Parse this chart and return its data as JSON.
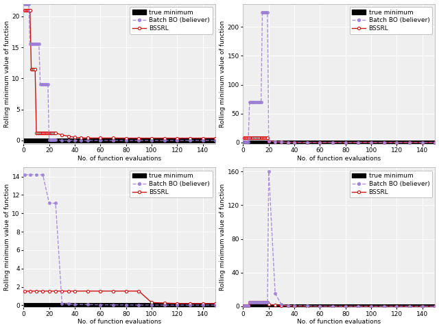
{
  "subplot_configs": [
    {
      "ylim": [
        -0.5,
        22
      ],
      "yticks": [
        0,
        5,
        10,
        15,
        20
      ],
      "bo_x": [
        1,
        2,
        3,
        4,
        5,
        6,
        7,
        8,
        9,
        10,
        11,
        12,
        13,
        14,
        15,
        16,
        17,
        18,
        19,
        20,
        21,
        22,
        23,
        24,
        25,
        30,
        35,
        40,
        45,
        50,
        60,
        70,
        80,
        90,
        100,
        110,
        120,
        130,
        140,
        150
      ],
      "bo_y": [
        22,
        22,
        22,
        22,
        15.5,
        15.5,
        15.5,
        15.5,
        15.5,
        15.5,
        15.5,
        15.5,
        9,
        9,
        9,
        9,
        9,
        9,
        9,
        0.08,
        0.08,
        0.08,
        0.08,
        0.08,
        0.08,
        0.05,
        0.03,
        0.02,
        0.01,
        0.01,
        0.01,
        0.01,
        0.01,
        0.01,
        0.01,
        0.01,
        0.01,
        0.01,
        0.01,
        0.01
      ],
      "rl_x": [
        1,
        2,
        3,
        4,
        5,
        6,
        7,
        8,
        9,
        10,
        11,
        12,
        13,
        14,
        15,
        16,
        17,
        18,
        19,
        20,
        21,
        22,
        23,
        24,
        25,
        30,
        35,
        40,
        45,
        50,
        60,
        70,
        80,
        90,
        100,
        110,
        120,
        130,
        140,
        150
      ],
      "rl_y": [
        21,
        21,
        21,
        21,
        21,
        11.5,
        11.5,
        11.5,
        11.5,
        1.2,
        1.2,
        1.2,
        1.2,
        1.2,
        1.2,
        1.2,
        1.2,
        1.2,
        1.2,
        1.2,
        1.2,
        1.2,
        1.2,
        1.2,
        1.2,
        0.9,
        0.7,
        0.5,
        0.45,
        0.4,
        0.4,
        0.4,
        0.38,
        0.38,
        0.38,
        0.38,
        0.38,
        0.38,
        0.38,
        0.38
      ]
    },
    {
      "ylim": [
        -2,
        240
      ],
      "yticks": [
        0,
        50,
        100,
        150,
        200
      ],
      "bo_x": [
        1,
        2,
        3,
        4,
        5,
        6,
        7,
        8,
        9,
        10,
        11,
        12,
        13,
        14,
        15,
        16,
        17,
        18,
        19,
        20,
        25,
        30,
        35,
        40,
        50,
        60,
        70,
        80,
        90,
        100,
        110,
        120,
        130,
        140,
        150
      ],
      "bo_y": [
        1,
        1,
        1,
        1,
        70,
        70,
        70,
        70,
        70,
        70,
        70,
        70,
        70,
        70,
        225,
        225,
        225,
        225,
        225,
        2,
        1.5,
        0.5,
        0.3,
        0.2,
        0.15,
        0.1,
        0.08,
        0.07,
        0.06,
        0.05,
        0.05,
        0.05,
        0.05,
        0.05,
        0.05
      ],
      "rl_x": [
        1,
        2,
        3,
        4,
        5,
        6,
        7,
        8,
        9,
        10,
        11,
        12,
        13,
        14,
        15,
        16,
        17,
        18,
        19,
        20,
        25,
        30,
        35,
        40,
        50,
        60,
        70,
        80,
        90,
        100,
        110,
        120,
        130,
        140,
        150
      ],
      "rl_y": [
        8,
        8,
        8,
        8,
        8,
        8,
        8,
        8,
        8,
        8,
        8,
        8,
        8,
        8,
        8,
        8,
        8,
        8,
        8,
        2,
        1.5,
        0.5,
        0.3,
        0.2,
        0.15,
        0.1,
        0.08,
        0.07,
        0.06,
        0.05,
        0.05,
        0.05,
        0.05,
        0.05,
        0.05
      ]
    },
    {
      "ylim": [
        -0.2,
        15
      ],
      "yticks": [
        0,
        2,
        4,
        6,
        8,
        10,
        12,
        14
      ],
      "bo_x": [
        1,
        5,
        10,
        15,
        20,
        25,
        30,
        35,
        40,
        50,
        60,
        70,
        80,
        90,
        100,
        110,
        120,
        130,
        140,
        150
      ],
      "bo_y": [
        14.2,
        14.2,
        14.2,
        14.2,
        11.1,
        11.1,
        0.2,
        0.15,
        0.1,
        0.08,
        0.06,
        0.05,
        0.04,
        0.03,
        0.03,
        0.02,
        0.02,
        0.02,
        0.02,
        0.02
      ],
      "rl_x": [
        1,
        5,
        10,
        15,
        20,
        25,
        30,
        35,
        40,
        50,
        60,
        70,
        80,
        90,
        100,
        110,
        120,
        130,
        140,
        150
      ],
      "rl_y": [
        1.55,
        1.55,
        1.55,
        1.55,
        1.55,
        1.55,
        1.55,
        1.55,
        1.55,
        1.55,
        1.55,
        1.55,
        1.55,
        1.55,
        0.3,
        0.25,
        0.2,
        0.2,
        0.2,
        0.2
      ]
    },
    {
      "ylim": [
        -1,
        165
      ],
      "yticks": [
        0,
        40,
        80,
        120,
        160
      ],
      "bo_x": [
        1,
        2,
        3,
        4,
        5,
        6,
        7,
        8,
        9,
        10,
        11,
        12,
        13,
        14,
        15,
        16,
        17,
        18,
        19,
        20,
        25,
        30,
        35,
        40,
        50,
        60,
        70,
        80,
        90,
        100,
        110,
        120,
        130,
        140,
        150
      ],
      "bo_y": [
        1,
        1,
        1,
        1,
        5,
        5,
        5,
        5,
        5,
        5,
        5,
        5,
        5,
        5,
        5,
        5,
        5,
        5,
        5,
        160,
        15,
        2,
        1,
        0.8,
        0.5,
        0.3,
        0.2,
        0.15,
        0.1,
        0.08,
        0.07,
        0.06,
        0.06,
        0.06,
        0.06
      ],
      "rl_x": [
        1,
        2,
        3,
        4,
        5,
        6,
        7,
        8,
        9,
        10,
        11,
        12,
        13,
        14,
        15,
        16,
        17,
        18,
        19,
        20,
        25,
        30,
        35,
        40,
        50,
        60,
        70,
        80,
        90,
        100,
        110,
        120,
        130,
        140,
        150
      ],
      "rl_y": [
        1,
        1,
        1,
        1,
        5,
        5,
        5,
        5,
        5,
        5,
        5,
        5,
        5,
        5,
        5,
        5,
        5,
        5,
        5,
        2,
        1.5,
        0.8,
        0.5,
        0.3,
        0.2,
        0.15,
        0.1,
        0.08,
        0.06,
        0.05,
        0.05,
        0.04,
        0.04,
        0.04,
        0.04
      ]
    }
  ],
  "xlim": [
    0,
    150
  ],
  "xticks": [
    0,
    20,
    40,
    60,
    80,
    100,
    120,
    140
  ],
  "xlabel": "No. of function evaluations",
  "ylabel": "Rolling minimum value of function",
  "bo_color": "#9B7FD4",
  "rl_color": "#CC1111",
  "true_min_color": "#000000",
  "bg_color": "#efefef",
  "grid_color": "#ffffff",
  "fontsize": 6.5,
  "marker_size": 3,
  "linewidth": 1.0,
  "true_min_lw": 5
}
